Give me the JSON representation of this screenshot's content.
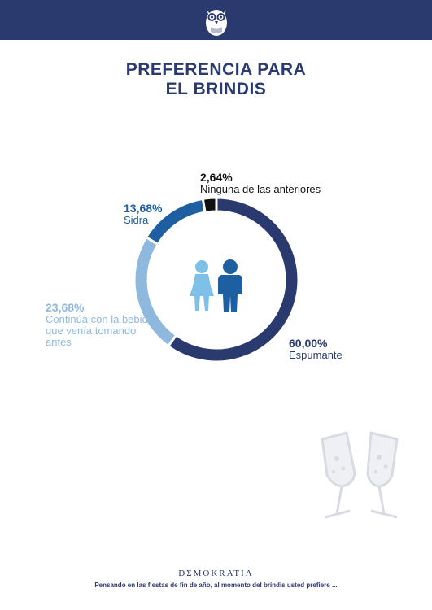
{
  "header": {
    "logo_icon": "owl-icon"
  },
  "title": {
    "line1": "PREFERENCIA PARA",
    "line2": "EL BRINDIS"
  },
  "chart_data": {
    "type": "pie",
    "donut": true,
    "slices": [
      {
        "label": "Espumante",
        "value": 60.0,
        "display": "60,00%",
        "color": "#2b3a6e"
      },
      {
        "label": "Continúa con la bebida que venía tomando antes",
        "value": 23.68,
        "display": "23,68%",
        "color": "#8fb8df"
      },
      {
        "label": "Sidra",
        "value": 13.68,
        "display": "13,68%",
        "color": "#1d5fa0"
      },
      {
        "label": "Ninguna de las anteriores",
        "value": 2.64,
        "display": "2,64%",
        "color": "#111111"
      }
    ],
    "center_icons": [
      "woman-icon",
      "man-icon"
    ]
  },
  "decor": {
    "glasses_icon": "champagne-glasses-icon"
  },
  "footer": {
    "brand": "DΣMOKRATIΛ",
    "question": "Pensando en las fiestas de fin de año, al momento del brindis usted prefiere ..."
  }
}
